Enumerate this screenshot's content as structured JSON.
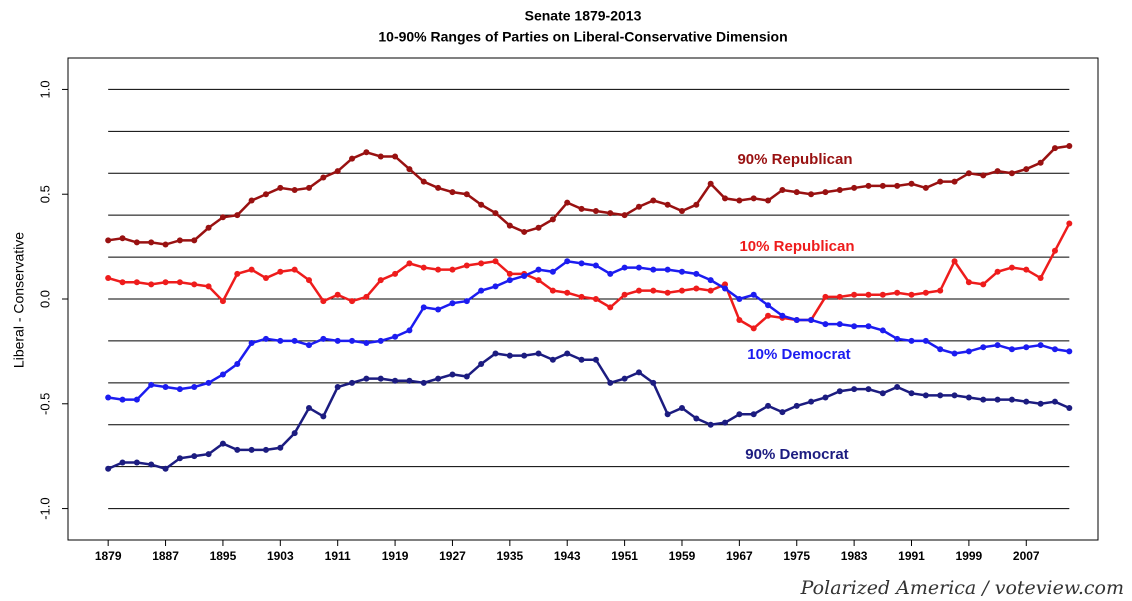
{
  "chart_data": {
    "type": "line",
    "title": "Senate 1879-2013",
    "subtitle": "10-90% Ranges of Parties on Liberal-Conservative Dimension",
    "y_label": "Liberal - Conservative",
    "credit": "Polarized America / voteview.com",
    "x": [
      1879,
      1881,
      1883,
      1885,
      1887,
      1889,
      1891,
      1893,
      1895,
      1897,
      1899,
      1901,
      1903,
      1905,
      1907,
      1909,
      1911,
      1913,
      1915,
      1917,
      1919,
      1921,
      1923,
      1925,
      1927,
      1929,
      1931,
      1933,
      1935,
      1937,
      1939,
      1941,
      1943,
      1945,
      1947,
      1949,
      1951,
      1953,
      1955,
      1957,
      1959,
      1961,
      1963,
      1965,
      1967,
      1969,
      1971,
      1973,
      1975,
      1977,
      1979,
      1981,
      1983,
      1985,
      1987,
      1989,
      1991,
      1993,
      1995,
      1997,
      1999,
      2001,
      2003,
      2005,
      2007,
      2009,
      2011,
      2013
    ],
    "series": [
      {
        "name": "90% Republican",
        "color": "#991111",
        "values": [
          0.28,
          0.29,
          0.27,
          0.27,
          0.26,
          0.28,
          0.28,
          0.34,
          0.39,
          0.4,
          0.47,
          0.5,
          0.53,
          0.52,
          0.53,
          0.58,
          0.61,
          0.67,
          0.7,
          0.68,
          0.68,
          0.62,
          0.56,
          0.53,
          0.51,
          0.5,
          0.45,
          0.41,
          0.35,
          0.32,
          0.34,
          0.38,
          0.46,
          0.43,
          0.42,
          0.41,
          0.4,
          0.44,
          0.47,
          0.45,
          0.42,
          0.45,
          0.55,
          0.48,
          0.47,
          0.48,
          0.47,
          0.52,
          0.51,
          0.5,
          0.51,
          0.52,
          0.53,
          0.54,
          0.54,
          0.54,
          0.55,
          0.53,
          0.56,
          0.56,
          0.6,
          0.59,
          0.61,
          0.6,
          0.62,
          0.65,
          0.72,
          0.73
        ]
      },
      {
        "name": "10% Republican",
        "color": "#ee1c1c",
        "values": [
          0.1,
          0.08,
          0.08,
          0.07,
          0.08,
          0.08,
          0.07,
          0.06,
          -0.01,
          0.12,
          0.14,
          0.1,
          0.13,
          0.14,
          0.09,
          -0.01,
          0.02,
          -0.01,
          0.01,
          0.09,
          0.12,
          0.17,
          0.15,
          0.14,
          0.14,
          0.16,
          0.17,
          0.18,
          0.12,
          0.12,
          0.09,
          0.04,
          0.03,
          0.01,
          0.0,
          -0.04,
          0.02,
          0.04,
          0.04,
          0.03,
          0.04,
          0.05,
          0.04,
          0.07,
          -0.1,
          -0.14,
          -0.08,
          -0.09,
          -0.1,
          -0.1,
          0.01,
          0.01,
          0.02,
          0.02,
          0.02,
          0.03,
          0.02,
          0.03,
          0.04,
          0.18,
          0.08,
          0.07,
          0.13,
          0.15,
          0.14,
          0.1,
          0.23,
          0.36
        ]
      },
      {
        "name": "10% Democrat",
        "color": "#1c1cf0",
        "values": [
          -0.47,
          -0.48,
          -0.48,
          -0.41,
          -0.42,
          -0.43,
          -0.42,
          -0.4,
          -0.36,
          -0.31,
          -0.21,
          -0.19,
          -0.2,
          -0.2,
          -0.22,
          -0.19,
          -0.2,
          -0.2,
          -0.21,
          -0.2,
          -0.18,
          -0.15,
          -0.04,
          -0.05,
          -0.02,
          -0.01,
          0.04,
          0.06,
          0.09,
          0.11,
          0.14,
          0.13,
          0.18,
          0.17,
          0.16,
          0.12,
          0.15,
          0.15,
          0.14,
          0.14,
          0.13,
          0.12,
          0.09,
          0.05,
          0.0,
          0.02,
          -0.03,
          -0.08,
          -0.1,
          -0.1,
          -0.12,
          -0.12,
          -0.13,
          -0.13,
          -0.15,
          -0.19,
          -0.2,
          -0.2,
          -0.24,
          -0.26,
          -0.25,
          -0.23,
          -0.22,
          -0.24,
          -0.23,
          -0.22,
          -0.24,
          -0.25
        ]
      },
      {
        "name": "90% Democrat",
        "color": "#1c1c80",
        "values": [
          -0.81,
          -0.78,
          -0.78,
          -0.79,
          -0.81,
          -0.76,
          -0.75,
          -0.74,
          -0.69,
          -0.72,
          -0.72,
          -0.72,
          -0.71,
          -0.64,
          -0.52,
          -0.56,
          -0.42,
          -0.4,
          -0.38,
          -0.38,
          -0.39,
          -0.39,
          -0.4,
          -0.38,
          -0.36,
          -0.37,
          -0.31,
          -0.26,
          -0.27,
          -0.27,
          -0.26,
          -0.29,
          -0.26,
          -0.29,
          -0.29,
          -0.4,
          -0.38,
          -0.35,
          -0.4,
          -0.55,
          -0.52,
          -0.57,
          -0.6,
          -0.59,
          -0.55,
          -0.55,
          -0.51,
          -0.54,
          -0.51,
          -0.49,
          -0.47,
          -0.44,
          -0.43,
          -0.43,
          -0.45,
          -0.42,
          -0.45,
          -0.46,
          -0.46,
          -0.46,
          -0.47,
          -0.48,
          -0.48,
          -0.48,
          -0.49,
          -0.5,
          -0.49,
          -0.52
        ]
      }
    ],
    "xlim": [
      1873.4,
      2017
    ],
    "xticks": [
      1879,
      1887,
      1895,
      1903,
      1911,
      1919,
      1927,
      1935,
      1943,
      1951,
      1959,
      1967,
      1975,
      1983,
      1991,
      1999,
      2007
    ],
    "ylim": [
      -1.15,
      1.15
    ],
    "yticks": [
      {
        "value": -1,
        "label": "-1.0"
      },
      {
        "value": -0.5,
        "label": "-0.5"
      },
      {
        "value": 0,
        "label": "0.0"
      },
      {
        "value": 0.5,
        "label": "0.5"
      },
      {
        "value": 1,
        "label": "1.0"
      }
    ],
    "ygrid": [
      -1,
      -0.8,
      -0.6,
      -0.4,
      -0.2,
      0,
      0.2,
      0.4,
      0.6,
      0.8,
      1
    ]
  }
}
